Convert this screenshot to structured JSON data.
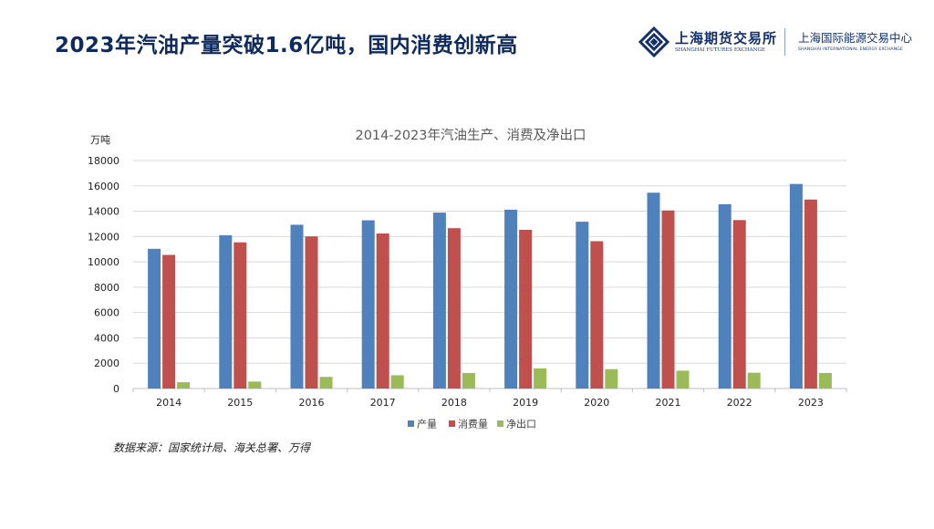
{
  "slide": {
    "title": "2023年汽油产量突破1.6亿吨，国内消费创新高",
    "source": "数据来源：国家统计局、海关总署、万得"
  },
  "logo": {
    "shfe_cn": "上海期货交易所",
    "shfe_en": "SHANGHAI FUTURES EXCHANGE",
    "ine_cn": "上海国际能源交易中心",
    "ine_en": "SHANGHAI INTERNATIONAL ENERGY EXCHANGE",
    "icon": "shfe-logo-icon"
  },
  "colors": {
    "title": "#0f2a5c",
    "production": "#4f81bd",
    "consumption": "#c0504d",
    "net_export": "#9bbb59",
    "grid": "#d9d9d9"
  },
  "chart_data": {
    "type": "bar",
    "title": "2014-2023年汽油生产、消费及净出口",
    "ylabel": "万吨",
    "xlabel": "",
    "ylim": [
      0,
      18000
    ],
    "yticks": [
      0,
      2000,
      4000,
      6000,
      8000,
      10000,
      12000,
      14000,
      16000,
      18000
    ],
    "grid": true,
    "legend_position": "bottom",
    "categories": [
      "2014",
      "2015",
      "2016",
      "2017",
      "2018",
      "2019",
      "2020",
      "2021",
      "2022",
      "2023"
    ],
    "series": [
      {
        "name": "产量",
        "values": [
          11030,
          12100,
          12930,
          13280,
          13890,
          14120,
          13170,
          15460,
          14550,
          16150
        ]
      },
      {
        "name": "消费量",
        "values": [
          10550,
          11540,
          12010,
          12240,
          12660,
          12530,
          11630,
          14060,
          13300,
          14920
        ]
      },
      {
        "name": "净出口",
        "values": [
          500,
          550,
          920,
          1050,
          1230,
          1590,
          1530,
          1410,
          1250,
          1230
        ]
      }
    ]
  }
}
